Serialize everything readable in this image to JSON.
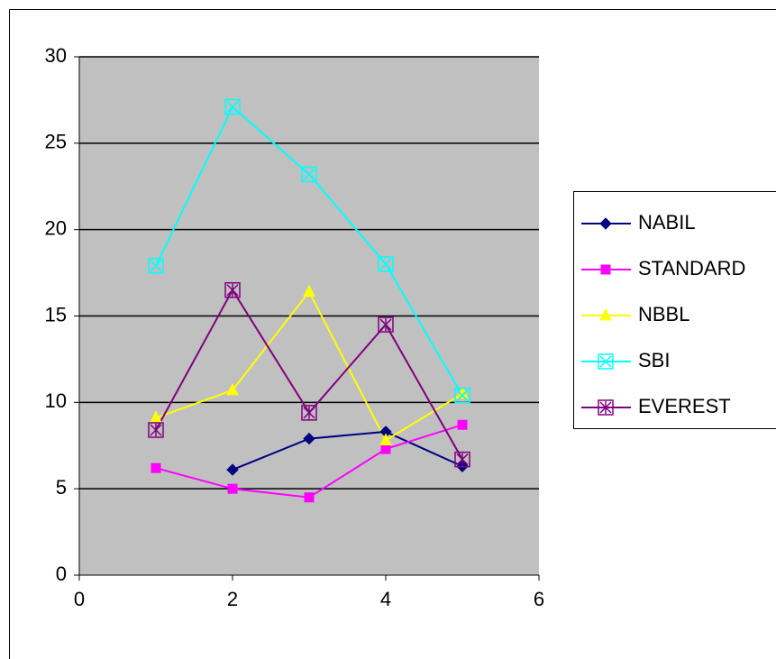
{
  "chart_data": {
    "type": "line",
    "x": [
      1,
      2,
      3,
      4,
      5
    ],
    "series": [
      {
        "name": "NABIL",
        "color": "#000080",
        "marker": "diamond",
        "values": [
          null,
          6.1,
          7.9,
          8.3,
          6.3
        ]
      },
      {
        "name": "STANDARD",
        "color": "#ff00ff",
        "marker": "square",
        "values": [
          6.2,
          5.0,
          4.5,
          7.3,
          8.7
        ]
      },
      {
        "name": "NBBL",
        "color": "#ffff00",
        "marker": "triangle",
        "values": [
          9.1,
          10.7,
          16.4,
          7.8,
          10.5
        ]
      },
      {
        "name": "SBI",
        "color": "#00ffff",
        "marker": "x",
        "values": [
          17.9,
          27.1,
          23.2,
          18.0,
          10.4
        ]
      },
      {
        "name": "EVEREST",
        "color": "#800080",
        "marker": "star",
        "values": [
          8.4,
          16.5,
          9.4,
          14.5,
          6.7
        ]
      }
    ],
    "xlim": [
      0,
      6
    ],
    "xticks": [
      0,
      2,
      4,
      6
    ],
    "ylim": [
      0,
      30
    ],
    "yticks": [
      0,
      5,
      10,
      15,
      20,
      25,
      30
    ],
    "grid": true,
    "legend": "right"
  }
}
